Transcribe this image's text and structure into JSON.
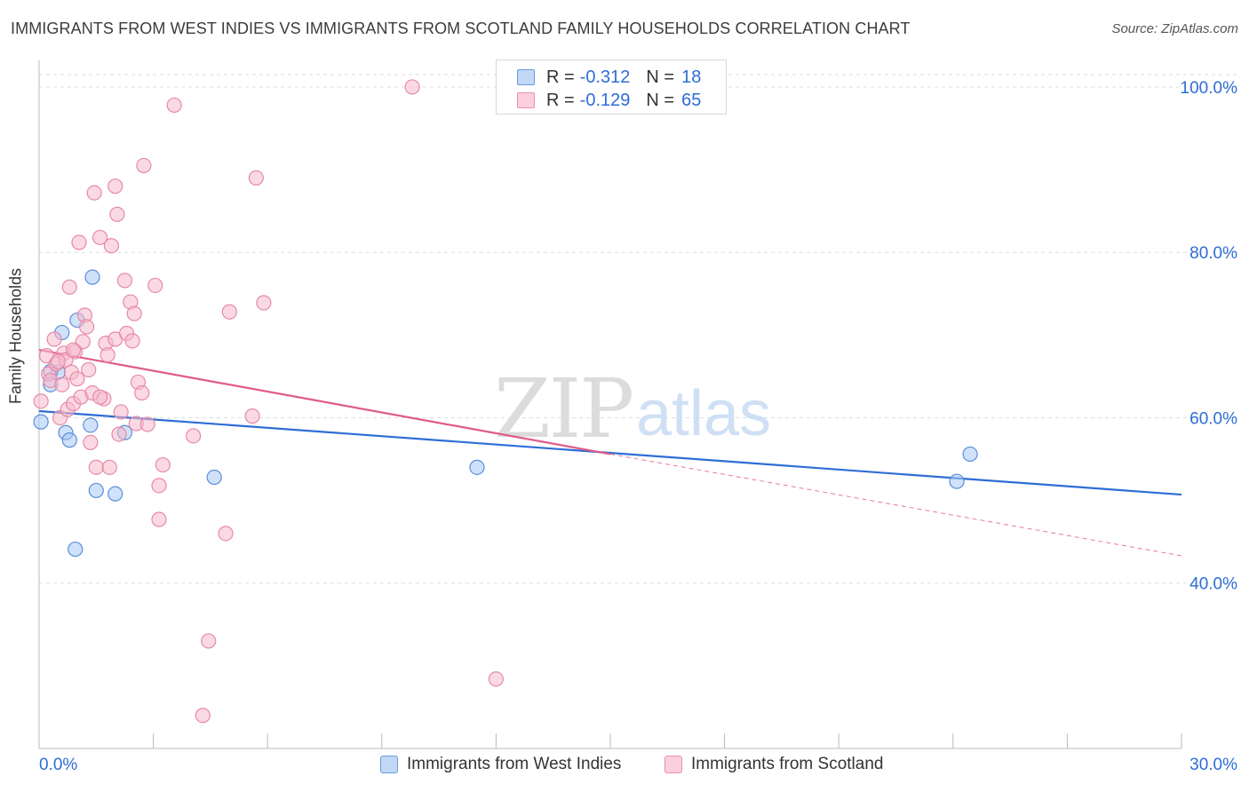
{
  "title": "IMMIGRANTS FROM WEST INDIES VS IMMIGRANTS FROM SCOTLAND FAMILY HOUSEHOLDS CORRELATION CHART",
  "source": "Source: ZipAtlas.com",
  "watermark": {
    "zip": "ZIP",
    "atlas": "atlas"
  },
  "legend_top": [
    {
      "r_label": "R =",
      "r_value": "-0.312",
      "n_label": "N =",
      "n_value": "18"
    },
    {
      "r_label": "R =",
      "r_value": "-0.129",
      "n_label": "N =",
      "n_value": "65"
    }
  ],
  "legend_bottom": [
    {
      "label": "Immigrants from West Indies"
    },
    {
      "label": "Immigrants from Scotland"
    }
  ],
  "x_tick_labels": {
    "left": "0.0%",
    "right": "30.0%"
  },
  "colors": {
    "blue_fill": "#a9c8f5",
    "blue_stroke": "#5a8fd8",
    "blue_line": "#2e6dd6",
    "pink_fill": "#f7b9cc",
    "pink_stroke": "#e58aa8",
    "pink_line": "#e05a8a",
    "tick_text": "#2e6dd6",
    "grid": "#dddddd"
  },
  "chart_data": {
    "type": "scatter",
    "title": "IMMIGRANTS FROM WEST INDIES VS IMMIGRANTS FROM SCOTLAND FAMILY HOUSEHOLDS CORRELATION CHART",
    "xlabel": "",
    "ylabel": "Family Households",
    "xlim": [
      0,
      30
    ],
    "ylim": [
      20,
      103
    ],
    "y_ticks": [
      {
        "value": 100,
        "label": "100.0%"
      },
      {
        "value": 80,
        "label": "80.0%"
      },
      {
        "value": 60,
        "label": "60.0%"
      },
      {
        "value": 40,
        "label": "40.0%"
      }
    ],
    "x_ticks": [
      0,
      3,
      6,
      9,
      12,
      15,
      18,
      21,
      24,
      27,
      30
    ],
    "grid": true,
    "legend_position": "top-center",
    "series": [
      {
        "name": "Immigrants from West Indies",
        "color": "blue",
        "points": [
          [
            0.05,
            59.5
          ],
          [
            0.3,
            64.0
          ],
          [
            0.5,
            65.5
          ],
          [
            0.6,
            70.3
          ],
          [
            0.7,
            58.2
          ],
          [
            0.8,
            57.3
          ],
          [
            1.0,
            71.8
          ],
          [
            1.35,
            59.1
          ],
          [
            1.4,
            77.0
          ],
          [
            1.5,
            51.2
          ],
          [
            2.0,
            50.8
          ],
          [
            2.25,
            58.2
          ],
          [
            4.6,
            52.8
          ],
          [
            0.95,
            44.1
          ],
          [
            11.5,
            54.0
          ],
          [
            24.1,
            52.3
          ],
          [
            24.45,
            55.6
          ],
          [
            0.3,
            65.6
          ]
        ],
        "trend": {
          "x": [
            0,
            30
          ],
          "y": [
            60.8,
            50.7
          ]
        }
      },
      {
        "name": "Immigrants from Scotland",
        "color": "pink",
        "points": [
          [
            0.05,
            62.0
          ],
          [
            0.2,
            67.5
          ],
          [
            0.25,
            65.3
          ],
          [
            0.3,
            64.5
          ],
          [
            0.4,
            69.5
          ],
          [
            0.45,
            66.5
          ],
          [
            0.55,
            60.0
          ],
          [
            0.6,
            64.0
          ],
          [
            0.65,
            67.8
          ],
          [
            0.7,
            67.0
          ],
          [
            0.75,
            61.0
          ],
          [
            0.8,
            75.8
          ],
          [
            0.85,
            65.5
          ],
          [
            0.9,
            61.7
          ],
          [
            0.95,
            68.0
          ],
          [
            1.0,
            64.7
          ],
          [
            1.05,
            81.2
          ],
          [
            1.1,
            62.5
          ],
          [
            1.15,
            69.2
          ],
          [
            1.2,
            72.4
          ],
          [
            1.25,
            71.0
          ],
          [
            1.3,
            65.8
          ],
          [
            1.35,
            57.0
          ],
          [
            1.4,
            63.0
          ],
          [
            1.45,
            87.2
          ],
          [
            1.5,
            54.0
          ],
          [
            1.6,
            81.8
          ],
          [
            1.7,
            62.3
          ],
          [
            1.75,
            69.0
          ],
          [
            1.8,
            67.6
          ],
          [
            1.85,
            54.0
          ],
          [
            1.9,
            80.8
          ],
          [
            2.0,
            69.5
          ],
          [
            2.0,
            88.0
          ],
          [
            2.05,
            84.6
          ],
          [
            2.1,
            58.0
          ],
          [
            2.15,
            60.7
          ],
          [
            2.25,
            76.6
          ],
          [
            2.3,
            70.2
          ],
          [
            2.4,
            74.0
          ],
          [
            2.45,
            69.3
          ],
          [
            2.5,
            72.6
          ],
          [
            2.55,
            59.3
          ],
          [
            2.6,
            64.3
          ],
          [
            2.7,
            63.0
          ],
          [
            2.75,
            90.5
          ],
          [
            2.85,
            59.2
          ],
          [
            3.05,
            76.0
          ],
          [
            3.15,
            51.8
          ],
          [
            3.15,
            47.7
          ],
          [
            3.25,
            54.3
          ],
          [
            3.55,
            97.8
          ],
          [
            4.05,
            57.8
          ],
          [
            4.45,
            33.0
          ],
          [
            4.3,
            24.0
          ],
          [
            4.9,
            46.0
          ],
          [
            5.0,
            72.8
          ],
          [
            5.6,
            60.2
          ],
          [
            5.7,
            89.0
          ],
          [
            5.9,
            73.9
          ],
          [
            9.8,
            100.0
          ],
          [
            12.0,
            28.4
          ],
          [
            1.6,
            62.5
          ],
          [
            0.5,
            66.8
          ],
          [
            0.9,
            68.2
          ]
        ],
        "trend": {
          "x": [
            0,
            15
          ],
          "y": [
            68.2,
            55.6
          ]
        },
        "trend_extension_dashed": {
          "x": [
            15,
            30
          ],
          "y": [
            55.6,
            43.3
          ]
        }
      }
    ]
  }
}
